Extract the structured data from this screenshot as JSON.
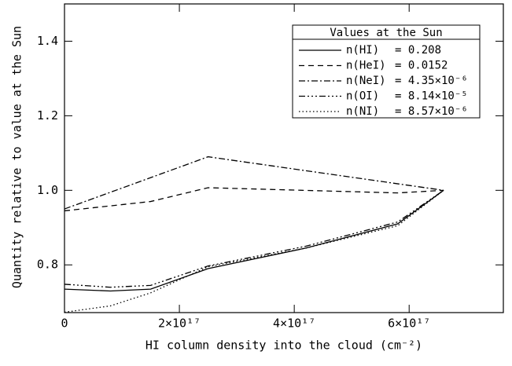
{
  "chart_data": {
    "type": "line",
    "xlabel": "HI column density into the cloud (cm⁻²)",
    "ylabel": "Quantity relative to value at the Sun",
    "xlim": [
      0,
      7.64e+17
    ],
    "ylim": [
      0.672,
      1.5
    ],
    "xticks": [
      0,
      {
        "value": 2e+17,
        "label": "2×10¹⁷"
      },
      {
        "value": 4e+17,
        "label": "4×10¹⁷"
      },
      {
        "value": 6e+17,
        "label": "6×10¹⁷"
      }
    ],
    "yticks": [
      0.8,
      1.0,
      1.2,
      1.4
    ],
    "legend_title": "Values at the Sun",
    "legend": "upper right",
    "series": [
      {
        "name": "n(HI)",
        "legend_value": "= 0.208",
        "color": "#000000",
        "dash": "none",
        "x": [
          0,
          8e+16,
          1.5e+17,
          2.5e+17,
          4.2e+17,
          5.8e+17,
          6.6e+17
        ],
        "values": [
          0.735,
          0.73,
          0.735,
          0.79,
          0.845,
          0.91,
          1.0
        ]
      },
      {
        "name": "n(HeI)",
        "legend_value": "= 0.0152",
        "color": "#000000",
        "dash": "7 5",
        "x": [
          0,
          1.5e+17,
          2.5e+17,
          5.8e+17,
          6.6e+17
        ],
        "values": [
          0.945,
          0.97,
          1.007,
          0.993,
          1.0
        ]
      },
      {
        "name": "n(NeI)",
        "legend_value": "= 4.35×10⁻⁶",
        "color": "#000000",
        "dash": "8 3 2 3",
        "x": [
          0,
          2.5e+17,
          6.6e+17
        ],
        "values": [
          0.95,
          1.09,
          1.0
        ]
      },
      {
        "name": "n(OI)",
        "legend_value": "= 8.14×10⁻⁵",
        "color": "#000000",
        "dash": "8 3 2 3 2 3 2 3",
        "x": [
          0,
          8e+16,
          1.5e+17,
          2.5e+17,
          4.2e+17,
          5.8e+17,
          6.6e+17
        ],
        "values": [
          0.748,
          0.74,
          0.745,
          0.797,
          0.85,
          0.915,
          1.0
        ]
      },
      {
        "name": "n(NI)",
        "legend_value": "= 8.57×10⁻⁶",
        "color": "#000000",
        "dash": "1.5 3",
        "x": [
          0,
          8e+16,
          1.5e+17,
          2.5e+17,
          4.2e+17,
          5.8e+17,
          6.6e+17
        ],
        "values": [
          0.673,
          0.69,
          0.725,
          0.795,
          0.845,
          0.905,
          1.0
        ]
      }
    ]
  }
}
